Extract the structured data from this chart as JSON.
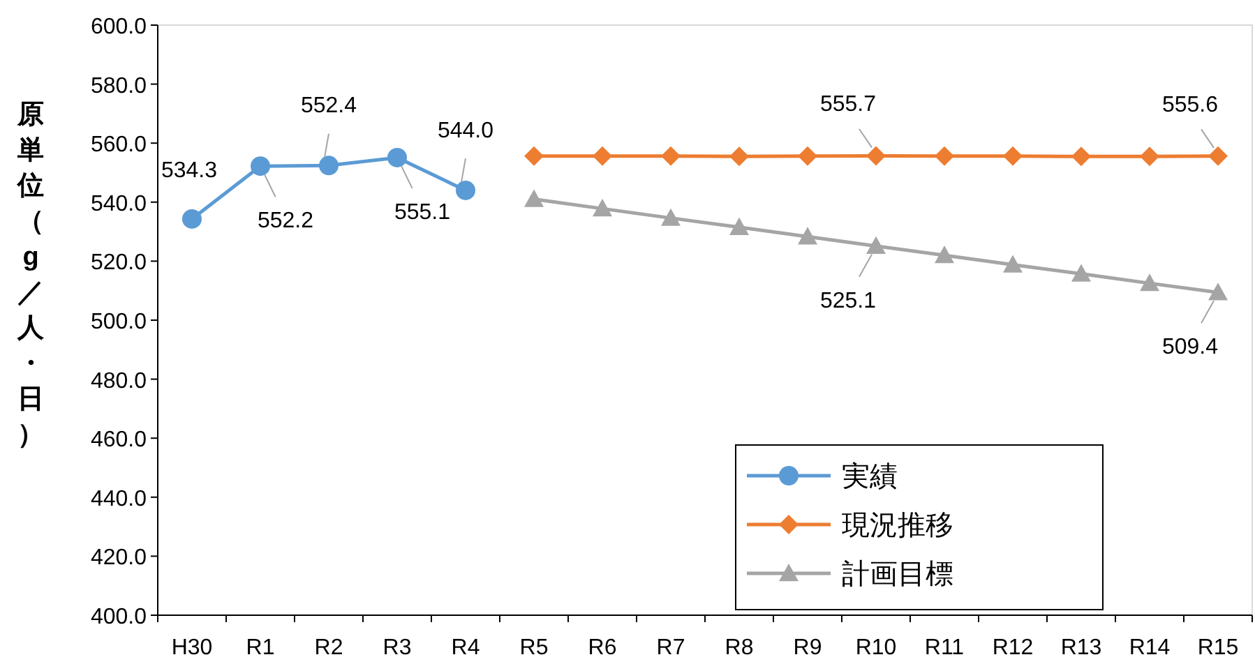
{
  "chart_data": {
    "type": "line",
    "ylabel": "原単位（g／人・日）",
    "categories": [
      "H30",
      "R1",
      "R2",
      "R3",
      "R4",
      "R5",
      "R6",
      "R7",
      "R8",
      "R9",
      "R10",
      "R11",
      "R12",
      "R13",
      "R14",
      "R15"
    ],
    "ylim": [
      400,
      600
    ],
    "yticks": [
      {
        "value": 400,
        "label": "400.0"
      },
      {
        "value": 420,
        "label": "420.0"
      },
      {
        "value": 440,
        "label": "440.0"
      },
      {
        "value": 460,
        "label": "460.0"
      },
      {
        "value": 480,
        "label": "480.0"
      },
      {
        "value": 500,
        "label": "500.0"
      },
      {
        "value": 520,
        "label": "520.0"
      },
      {
        "value": 540,
        "label": "540.0"
      },
      {
        "value": 560,
        "label": "560.0"
      },
      {
        "value": 580,
        "label": "580.0"
      },
      {
        "value": 600,
        "label": "600.0"
      }
    ],
    "grid": false,
    "legend": "bottom right",
    "series": [
      {
        "name": "実績",
        "color": "#5b9bd5",
        "marker": "circle",
        "values": [
          534.3,
          552.2,
          552.4,
          555.1,
          544.0,
          null,
          null,
          null,
          null,
          null,
          null,
          null,
          null,
          null,
          null,
          null
        ],
        "value_labels": [
          "534.3",
          "552.2",
          "552.4",
          "555.1",
          "544.0",
          null,
          null,
          null,
          null,
          null,
          null,
          null,
          null,
          null,
          null,
          null
        ]
      },
      {
        "name": "現況推移",
        "color": "#ed7d31",
        "marker": "diamond",
        "values": [
          null,
          null,
          null,
          null,
          null,
          555.6,
          555.6,
          555.6,
          555.5,
          555.6,
          555.7,
          555.6,
          555.6,
          555.5,
          555.5,
          555.6
        ],
        "value_labels": [
          null,
          null,
          null,
          null,
          null,
          null,
          null,
          null,
          null,
          null,
          "555.7",
          null,
          null,
          null,
          null,
          "555.6"
        ]
      },
      {
        "name": "計画目標",
        "color": "#a5a5a5",
        "marker": "triangle",
        "values": [
          null,
          null,
          null,
          null,
          null,
          541.0,
          537.8,
          534.6,
          531.5,
          528.3,
          525.1,
          522.0,
          518.8,
          515.7,
          512.5,
          509.4
        ],
        "value_labels": [
          null,
          null,
          null,
          null,
          null,
          null,
          null,
          null,
          null,
          null,
          "525.1",
          null,
          null,
          null,
          null,
          "509.4"
        ]
      }
    ]
  }
}
